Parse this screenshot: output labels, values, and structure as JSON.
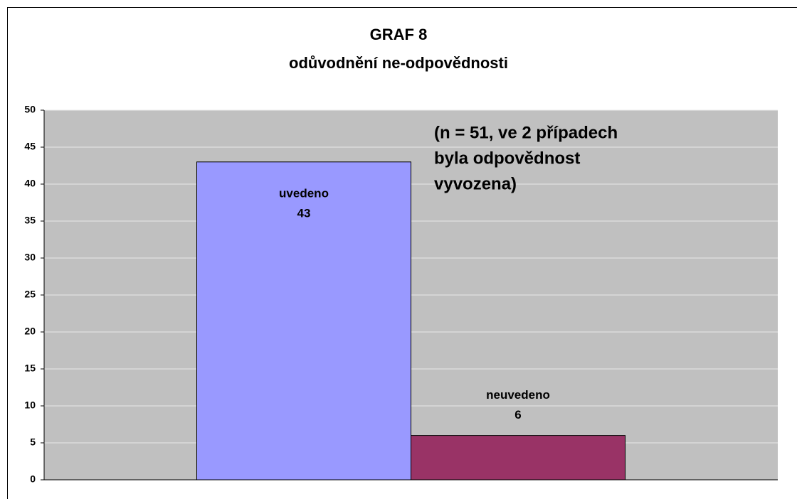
{
  "chart_data": {
    "type": "bar",
    "title": "GRAF 8",
    "subtitle": "odůvodnění ne-odpovědnosti",
    "annotation": [
      "(n = 51, ve 2 případech",
      "byla odpovědnost",
      "vyvozena)"
    ],
    "categories": [
      null
    ],
    "series": [
      {
        "name": "uvedeno",
        "color": "#9999ff",
        "values": [
          43
        ]
      },
      {
        "name": "neuvedeno",
        "color": "#993366",
        "values": [
          6
        ]
      }
    ],
    "ylim": [
      0,
      50
    ],
    "yticks": [
      0,
      5,
      10,
      15,
      20,
      25,
      30,
      35,
      40,
      45,
      50
    ],
    "grid": true
  }
}
